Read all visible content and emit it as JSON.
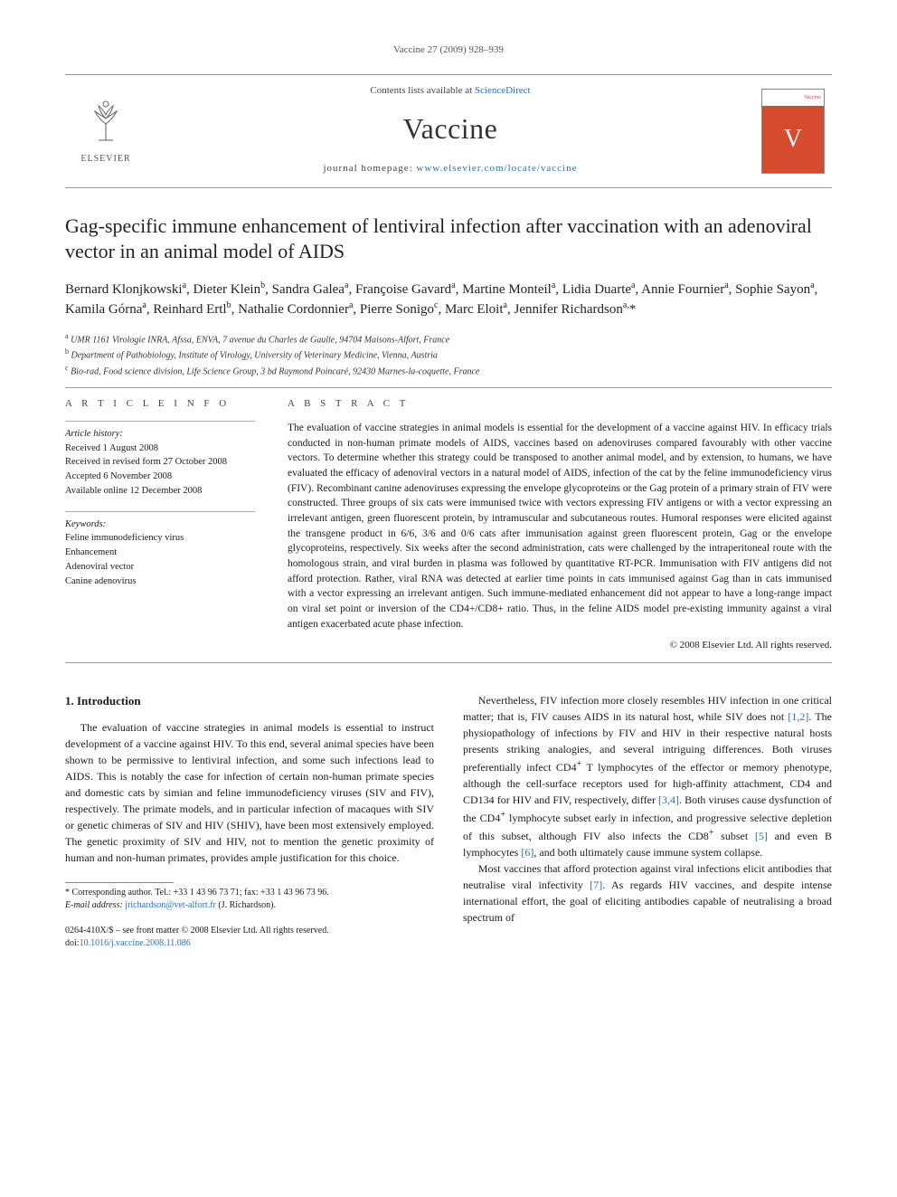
{
  "running_head": "Vaccine 27 (2009) 928–939",
  "masthead": {
    "publisher_label": "ELSEVIER",
    "contents_prefix": "Contents lists available at ",
    "contents_link": "ScienceDirect",
    "journal": "Vaccine",
    "homepage_prefix": "journal homepage: ",
    "homepage_url": "www.elsevier.com/locate/vaccine",
    "cover_label": "Vaccine",
    "cover_glyph": "V"
  },
  "title": "Gag-specific immune enhancement of lentiviral infection after vaccination with an adenoviral vector in an animal model of AIDS",
  "authors_html": "Bernard Klonjkowski<sup>a</sup>, Dieter Klein<sup>b</sup>, Sandra Galea<sup>a</sup>, Françoise Gavard<sup>a</sup>, Martine Monteil<sup>a</sup>, Lidia Duarte<sup>a</sup>, Annie Fournier<sup>a</sup>, Sophie Sayon<sup>a</sup>, Kamila Górna<sup>a</sup>, Reinhard Ertl<sup>b</sup>, Nathalie Cordonnier<sup>a</sup>, Pierre Sonigo<sup>c</sup>, Marc Eloit<sup>a</sup>, Jennifer Richardson<sup>a,</sup>*",
  "affiliations": [
    {
      "sup": "a",
      "text": "UMR 1161 Virologie INRA, Afssa, ENVA, 7 avenue du Charles de Gaulle, 94704 Maisons-Alfort, France"
    },
    {
      "sup": "b",
      "text": "Department of Pathobiology, Institute of Virology, University of Veterinary Medicine, Vienna, Austria"
    },
    {
      "sup": "c",
      "text": "Bio-rad, Food science division, Life Science Group, 3 bd Raymond Poincaré, 92430 Marnes-la-coquette, France"
    }
  ],
  "info": {
    "head": "A R T I C L E   I N F O",
    "history_label": "Article history:",
    "history": [
      "Received 1 August 2008",
      "Received in revised form 27 October 2008",
      "Accepted 6 November 2008",
      "Available online 12 December 2008"
    ],
    "keywords_label": "Keywords:",
    "keywords": [
      "Feline immunodeficiency virus",
      "Enhancement",
      "Adenoviral vector",
      "Canine adenovirus"
    ]
  },
  "abstract": {
    "head": "A B S T R A C T",
    "text": "The evaluation of vaccine strategies in animal models is essential for the development of a vaccine against HIV. In efficacy trials conducted in non-human primate models of AIDS, vaccines based on adenoviruses compared favourably with other vaccine vectors. To determine whether this strategy could be transposed to another animal model, and by extension, to humans, we have evaluated the efficacy of adenoviral vectors in a natural model of AIDS, infection of the cat by the feline immunodeficiency virus (FIV). Recombinant canine adenoviruses expressing the envelope glycoproteins or the Gag protein of a primary strain of FIV were constructed. Three groups of six cats were immunised twice with vectors expressing FIV antigens or with a vector expressing an irrelevant antigen, green fluorescent protein, by intramuscular and subcutaneous routes. Humoral responses were elicited against the transgene product in 6/6, 3/6 and 0/6 cats after immunisation against green fluorescent protein, Gag or the envelope glycoproteins, respectively. Six weeks after the second administration, cats were challenged by the intraperitoneal route with the homologous strain, and viral burden in plasma was followed by quantitative RT-PCR. Immunisation with FIV antigens did not afford protection. Rather, viral RNA was detected at earlier time points in cats immunised against Gag than in cats immunised with a vector expressing an irrelevant antigen. Such immune-mediated enhancement did not appear to have a long-range impact on viral set point or inversion of the CD4+/CD8+ ratio. Thus, in the feline AIDS model pre-existing immunity against a viral antigen exacerbated acute phase infection.",
    "copyright": "© 2008 Elsevier Ltd. All rights reserved."
  },
  "body": {
    "section_head": "1.  Introduction",
    "left_para": "The evaluation of vaccine strategies in animal models is essential to instruct development of a vaccine against HIV. To this end, several animal species have been shown to be permissive to lentiviral infection, and some such infections lead to AIDS. This is notably the case for infection of certain non-human primate species and domestic cats by simian and feline immunodeficiency viruses (SIV and FIV), respectively. The primate models, and in particular infection of macaques with SIV or genetic chimeras of SIV and HIV (SHIV), have been most extensively employed. The genetic proximity of SIV and HIV, not to mention the genetic proximity of human and non-human primates, provides ample justification for this choice.",
    "right_para1_html": "Nevertheless, FIV infection more closely resembles HIV infection in one critical matter; that is, FIV causes AIDS in its natural host, while SIV does not <span class=\"cite-link\">[1,2]</span>. The physiopathology of infections by FIV and HIV in their respective natural hosts presents striking analogies, and several intriguing differences. Both viruses preferentially infect CD4<sup>+</sup> T lymphocytes of the effector or memory phenotype, although the cell-surface receptors used for high-affinity attachment, CD4 and CD134 for HIV and FIV, respectively, differ <span class=\"cite-link\">[3,4]</span>. Both viruses cause dysfunction of the CD4<sup>+</sup> lymphocyte subset early in infection, and progressive selective depletion of this subset, although FIV also infects the CD8<sup>+</sup> subset <span class=\"cite-link\">[5]</span> and even B lymphocytes <span class=\"cite-link\">[6]</span>, and both ultimately cause immune system collapse.",
    "right_para2_html": "Most vaccines that afford protection against viral infections elicit antibodies that neutralise viral infectivity <span class=\"cite-link\">[7]</span>. As regards HIV vaccines, and despite intense international effort, the goal of eliciting antibodies capable of neutralising a broad spectrum of"
  },
  "footnote": {
    "corresponding": "* Corresponding author. Tel.: +33 1 43 96 73 71; fax: +33 1 43 96 73 96.",
    "email_label": "E-mail address:",
    "email": "jrichardson@vet-alfort.fr",
    "email_who": "(J. Richardson)."
  },
  "footer": {
    "line1": "0264-410X/$ – see front matter © 2008 Elsevier Ltd. All rights reserved.",
    "doi_prefix": "doi:",
    "doi": "10.1016/j.vaccine.2008.11.086"
  },
  "colors": {
    "link": "#2a6fb5",
    "cover_bg": "#d64a2e",
    "rule": "#999999",
    "text": "#1a1a1a"
  }
}
